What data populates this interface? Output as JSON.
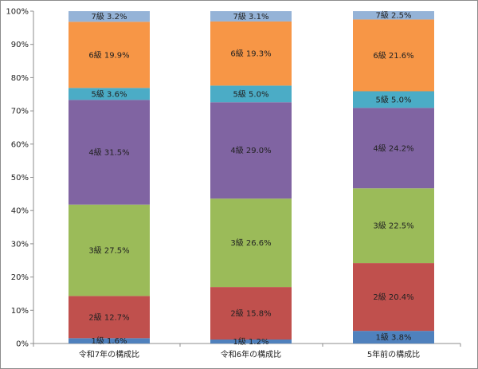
{
  "chart_data": {
    "type": "bar",
    "stacked": true,
    "categories": [
      "令和7年の構成比",
      "令和6年の構成比",
      "5年前の構成比"
    ],
    "ylim": [
      0,
      100
    ],
    "yticks": [
      0,
      10,
      20,
      30,
      40,
      50,
      60,
      70,
      80,
      90,
      100
    ],
    "ytick_labels": [
      "0%",
      "10%",
      "20%",
      "30%",
      "40%",
      "50%",
      "60%",
      "70%",
      "80%",
      "90%",
      "100%"
    ],
    "grid": false,
    "series": [
      {
        "name": "1級",
        "color": "#4f81bd",
        "values": [
          1.6,
          1.2,
          3.8
        ],
        "labels": [
          "1級 1.6%",
          "1級 1.2%",
          "1級 3.8%"
        ]
      },
      {
        "name": "2級",
        "color": "#c0504d",
        "values": [
          12.7,
          15.8,
          20.4
        ],
        "labels": [
          "2級 12.7%",
          "2級 15.8%",
          "2級 20.4%"
        ]
      },
      {
        "name": "3級",
        "color": "#9bbb59",
        "values": [
          27.5,
          26.6,
          22.5
        ],
        "labels": [
          "3級 27.5%",
          "3級 26.6%",
          "3級 22.5%"
        ]
      },
      {
        "name": "4級",
        "color": "#8064a2",
        "values": [
          31.5,
          29.0,
          24.2
        ],
        "labels": [
          "4級 31.5%",
          "4級 29.0%",
          "4級 24.2%"
        ]
      },
      {
        "name": "5級",
        "color": "#4bacc6",
        "values": [
          3.6,
          5.0,
          5.0
        ],
        "labels": [
          "5級 3.6%",
          "5級 5.0%",
          "5級 5.0%"
        ]
      },
      {
        "name": "6級",
        "color": "#f79646",
        "values": [
          19.9,
          19.3,
          21.6
        ],
        "labels": [
          "6級 19.9%",
          "6級 19.3%",
          "6級 21.6%"
        ]
      },
      {
        "name": "7級",
        "color": "#95b3d7",
        "values": [
          3.2,
          3.1,
          2.5
        ],
        "labels": [
          "7級 3.2%",
          "7級 3.1%",
          "7級 2.5%"
        ]
      }
    ]
  }
}
